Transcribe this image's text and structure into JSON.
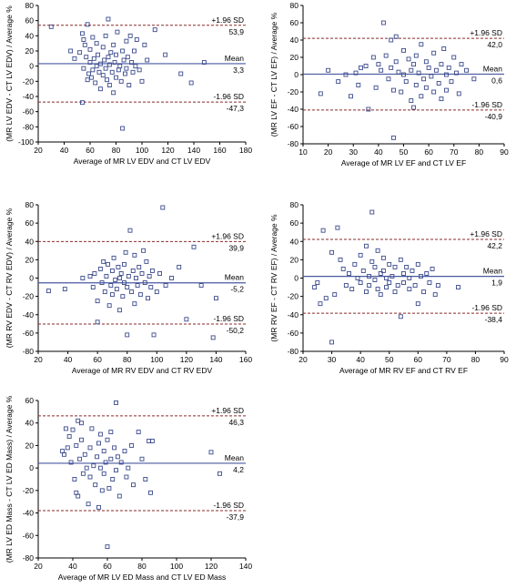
{
  "colors": {
    "mean_line": "#4a5aa0",
    "sd_line": "#8a2a2a",
    "marker": "#3b4a8c",
    "axis": "#000000"
  },
  "chart_data": [
    {
      "type": "scatter",
      "title": "",
      "xlabel": "Average of MR LV EDV and CT LV EDV",
      "ylabel": "(MR LV EDV - CT LV EDV) / Average %",
      "xlim": [
        20,
        180
      ],
      "ylim": [
        -100,
        80
      ],
      "xticks": [
        20,
        40,
        60,
        80,
        100,
        120,
        140,
        160,
        180
      ],
      "yticks": [
        -100,
        -80,
        -60,
        -40,
        -20,
        0,
        20,
        40,
        60,
        80
      ],
      "mean": 3.3,
      "upper": 53.9,
      "lower": -47.3,
      "mean_label": "Mean",
      "mean_value_label": "3,3",
      "upper_label": "+1.96 SD",
      "upper_value_label": "53,9",
      "lower_label": "-1.96 SD",
      "lower_value_label": "-47,3",
      "points": [
        [
          30,
          52
        ],
        [
          45,
          20
        ],
        [
          48,
          10
        ],
        [
          52,
          18
        ],
        [
          54,
          43
        ],
        [
          55,
          35
        ],
        [
          55,
          -3
        ],
        [
          56,
          28
        ],
        [
          57,
          12
        ],
        [
          58,
          55
        ],
        [
          58,
          -18
        ],
        [
          59,
          -10
        ],
        [
          60,
          22
        ],
        [
          60,
          5
        ],
        [
          61,
          -15
        ],
        [
          62,
          38
        ],
        [
          62,
          -5
        ],
        [
          63,
          10
        ],
        [
          64,
          -22
        ],
        [
          65,
          30
        ],
        [
          65,
          0
        ],
        [
          66,
          15
        ],
        [
          67,
          -8
        ],
        [
          68,
          -30
        ],
        [
          68,
          3
        ],
        [
          70,
          25
        ],
        [
          70,
          -12
        ],
        [
          71,
          8
        ],
        [
          72,
          40
        ],
        [
          72,
          -3
        ],
        [
          73,
          -18
        ],
        [
          74,
          12
        ],
        [
          75,
          -25
        ],
        [
          75,
          2
        ],
        [
          76,
          18
        ],
        [
          77,
          -8
        ],
        [
          78,
          28
        ],
        [
          78,
          -35
        ],
        [
          79,
          5
        ],
        [
          80,
          -15
        ],
        [
          80,
          15
        ],
        [
          81,
          45
        ],
        [
          82,
          -5
        ],
        [
          83,
          0
        ],
        [
          84,
          -20
        ],
        [
          85,
          20
        ],
        [
          85,
          -82
        ],
        [
          86,
          8
        ],
        [
          87,
          -10
        ],
        [
          88,
          33
        ],
        [
          88,
          -3
        ],
        [
          89,
          12
        ],
        [
          90,
          -25
        ],
        [
          91,
          40
        ],
        [
          92,
          5
        ],
        [
          93,
          -8
        ],
        [
          94,
          20
        ],
        [
          95,
          0
        ],
        [
          96,
          35
        ],
        [
          98,
          -5
        ],
        [
          100,
          -20
        ],
        [
          102,
          28
        ],
        [
          104,
          8
        ],
        [
          110,
          48
        ],
        [
          118,
          15
        ],
        [
          130,
          -10
        ],
        [
          138,
          -22
        ],
        [
          148,
          5
        ],
        [
          54,
          -48
        ],
        [
          74,
          62
        ]
      ]
    },
    {
      "type": "scatter",
      "title": "",
      "xlabel": "Average of MR LV EF and CT LV EF",
      "ylabel": "(MR LV EF - CT LV EF) / Average %",
      "xlim": [
        10,
        90
      ],
      "ylim": [
        -80,
        80
      ],
      "xticks": [
        10,
        20,
        30,
        40,
        50,
        60,
        70,
        80,
        90
      ],
      "yticks": [
        -80,
        -60,
        -40,
        -20,
        0,
        20,
        40,
        60,
        80
      ],
      "mean": 0.6,
      "upper": 42.0,
      "lower": -40.9,
      "mean_label": "Mean",
      "mean_value_label": "0,6",
      "upper_label": "+1.96 SD",
      "upper_value_label": "42,0",
      "lower_label": "-1.96 SD",
      "lower_value_label": "-40,9",
      "points": [
        [
          17,
          -22
        ],
        [
          20,
          5
        ],
        [
          24,
          -8
        ],
        [
          27,
          0
        ],
        [
          29,
          -25
        ],
        [
          31,
          2
        ],
        [
          32,
          -12
        ],
        [
          33,
          8
        ],
        [
          35,
          10
        ],
        [
          36,
          -40
        ],
        [
          38,
          20
        ],
        [
          39,
          -15
        ],
        [
          40,
          12
        ],
        [
          41,
          5
        ],
        [
          42,
          60
        ],
        [
          43,
          22
        ],
        [
          44,
          -5
        ],
        [
          45,
          8
        ],
        [
          45,
          40
        ],
        [
          46,
          -73
        ],
        [
          46,
          -18
        ],
        [
          47,
          15
        ],
        [
          47,
          44
        ],
        [
          48,
          3
        ],
        [
          49,
          -20
        ],
        [
          50,
          28
        ],
        [
          50,
          0
        ],
        [
          51,
          -8
        ],
        [
          52,
          18
        ],
        [
          53,
          -30
        ],
        [
          53,
          5
        ],
        [
          54,
          12
        ],
        [
          54,
          -38
        ],
        [
          55,
          -12
        ],
        [
          55,
          22
        ],
        [
          56,
          2
        ],
        [
          57,
          35
        ],
        [
          57,
          -25
        ],
        [
          58,
          -5
        ],
        [
          59,
          15
        ],
        [
          59,
          -15
        ],
        [
          60,
          8
        ],
        [
          61,
          -2
        ],
        [
          62,
          25
        ],
        [
          62,
          -20
        ],
        [
          63,
          5
        ],
        [
          64,
          -10
        ],
        [
          65,
          12
        ],
        [
          65,
          -28
        ],
        [
          66,
          30
        ],
        [
          67,
          0
        ],
        [
          67,
          -18
        ],
        [
          68,
          8
        ],
        [
          69,
          -8
        ],
        [
          70,
          20
        ],
        [
          71,
          2
        ],
        [
          72,
          -22
        ],
        [
          73,
          12
        ],
        [
          75,
          5
        ],
        [
          78,
          -5
        ]
      ]
    },
    {
      "type": "scatter",
      "title": "",
      "xlabel": "Average of MR RV EDV and CT RV EDV",
      "ylabel": "(MR RV EDV - CT RV EDV) / Average %",
      "xlim": [
        20,
        160
      ],
      "ylim": [
        -80,
        80
      ],
      "xticks": [
        20,
        40,
        60,
        80,
        100,
        120,
        140,
        160
      ],
      "yticks": [
        -80,
        -60,
        -40,
        -20,
        0,
        20,
        40,
        60,
        80
      ],
      "mean": -5.2,
      "upper": 39.9,
      "lower": -50.2,
      "mean_label": "Mean",
      "mean_value_label": "-5,2",
      "upper_label": "+1.96 SD",
      "upper_value_label": "39,9",
      "lower_label": "-1.96 SD",
      "lower_value_label": "-50,2",
      "points": [
        [
          27,
          -14
        ],
        [
          38,
          -12
        ],
        [
          50,
          0
        ],
        [
          55,
          2
        ],
        [
          57,
          -10
        ],
        [
          58,
          5
        ],
        [
          60,
          -25
        ],
        [
          60,
          -48
        ],
        [
          62,
          10
        ],
        [
          63,
          -5
        ],
        [
          64,
          18
        ],
        [
          65,
          -15
        ],
        [
          66,
          2
        ],
        [
          67,
          15
        ],
        [
          68,
          -30
        ],
        [
          69,
          -8
        ],
        [
          70,
          8
        ],
        [
          70,
          -18
        ],
        [
          71,
          22
        ],
        [
          72,
          -2
        ],
        [
          73,
          -12
        ],
        [
          74,
          12
        ],
        [
          75,
          -35
        ],
        [
          75,
          0
        ],
        [
          76,
          5
        ],
        [
          77,
          -20
        ],
        [
          78,
          -5
        ],
        [
          78,
          15
        ],
        [
          79,
          28
        ],
        [
          80,
          -10
        ],
        [
          80,
          -62
        ],
        [
          81,
          2
        ],
        [
          82,
          52
        ],
        [
          83,
          -15
        ],
        [
          84,
          8
        ],
        [
          85,
          25
        ],
        [
          85,
          -28
        ],
        [
          86,
          0
        ],
        [
          87,
          -8
        ],
        [
          88,
          12
        ],
        [
          89,
          -18
        ],
        [
          90,
          5
        ],
        [
          91,
          30
        ],
        [
          92,
          -5
        ],
        [
          93,
          18
        ],
        [
          94,
          -22
        ],
        [
          95,
          2
        ],
        [
          96,
          -10
        ],
        [
          97,
          8
        ],
        [
          98,
          -62
        ],
        [
          100,
          -15
        ],
        [
          102,
          5
        ],
        [
          104,
          77
        ],
        [
          106,
          -8
        ],
        [
          110,
          0
        ],
        [
          115,
          12
        ],
        [
          120,
          -45
        ],
        [
          125,
          34
        ],
        [
          130,
          -8
        ],
        [
          138,
          -65
        ],
        [
          140,
          -22
        ]
      ]
    },
    {
      "type": "scatter",
      "title": "",
      "xlabel": "Average of MR RV EF and CT RV EF",
      "ylabel": "(MR RV EF - CT RV EF) / Average %",
      "xlim": [
        20,
        90
      ],
      "ylim": [
        -80,
        80
      ],
      "xticks": [
        20,
        30,
        40,
        50,
        60,
        70,
        80,
        90
      ],
      "yticks": [
        -80,
        -60,
        -40,
        -20,
        0,
        20,
        40,
        60,
        80
      ],
      "mean": 1.9,
      "upper": 42.2,
      "lower": -38.4,
      "mean_label": "Mean",
      "mean_value_label": "1,9",
      "upper_label": "+1.96 SD",
      "upper_value_label": "42,2",
      "lower_label": "-1.96 SD",
      "lower_value_label": "-38,4",
      "points": [
        [
          24,
          -10
        ],
        [
          25,
          -5
        ],
        [
          26,
          -28
        ],
        [
          27,
          52
        ],
        [
          28,
          -22
        ],
        [
          30,
          28
        ],
        [
          30,
          -70
        ],
        [
          31,
          -18
        ],
        [
          32,
          55
        ],
        [
          33,
          20
        ],
        [
          34,
          10
        ],
        [
          35,
          -8
        ],
        [
          36,
          5
        ],
        [
          37,
          -12
        ],
        [
          38,
          15
        ],
        [
          39,
          0
        ],
        [
          40,
          -5
        ],
        [
          40,
          25
        ],
        [
          41,
          8
        ],
        [
          42,
          -15
        ],
        [
          42,
          35
        ],
        [
          43,
          2
        ],
        [
          43,
          -8
        ],
        [
          44,
          18
        ],
        [
          44,
          72
        ],
        [
          45,
          -2
        ],
        [
          45,
          12
        ],
        [
          46,
          30
        ],
        [
          46,
          -12
        ],
        [
          47,
          5
        ],
        [
          47,
          -18
        ],
        [
          48,
          8
        ],
        [
          48,
          22
        ],
        [
          49,
          0
        ],
        [
          49,
          -10
        ],
        [
          50,
          15
        ],
        [
          50,
          -5
        ],
        [
          51,
          2
        ],
        [
          52,
          12
        ],
        [
          52,
          -15
        ],
        [
          53,
          -8
        ],
        [
          54,
          20
        ],
        [
          54,
          -42
        ],
        [
          55,
          5
        ],
        [
          55,
          -5
        ],
        [
          56,
          12
        ],
        [
          57,
          0
        ],
        [
          57,
          -12
        ],
        [
          58,
          8
        ],
        [
          59,
          -8
        ],
        [
          60,
          15
        ],
        [
          60,
          -28
        ],
        [
          61,
          2
        ],
        [
          62,
          -15
        ],
        [
          63,
          5
        ],
        [
          64,
          -5
        ],
        [
          65,
          10
        ],
        [
          66,
          -18
        ],
        [
          67,
          -8
        ],
        [
          74,
          -10
        ]
      ]
    },
    {
      "type": "scatter",
      "title": "",
      "xlabel": "Average of MR LV ED Mass and CT LV ED Mass",
      "ylabel": "(MR LV ED Mass - CT LV ED Mass) / Average %",
      "xlim": [
        20,
        140
      ],
      "ylim": [
        -80,
        60
      ],
      "xticks": [
        20,
        40,
        60,
        80,
        100,
        120,
        140
      ],
      "yticks": [
        -80,
        -60,
        -40,
        -20,
        0,
        20,
        40,
        60
      ],
      "mean": 4.2,
      "upper": 46.3,
      "lower": -37.9,
      "mean_label": "Mean",
      "mean_value_label": "4,2",
      "upper_label": "+1.96 SD",
      "upper_value_label": "46,3",
      "lower_label": "-1.96 SD",
      "lower_value_label": "-37,9",
      "points": [
        [
          34,
          15
        ],
        [
          35,
          12
        ],
        [
          36,
          35
        ],
        [
          37,
          18
        ],
        [
          38,
          28
        ],
        [
          39,
          5
        ],
        [
          40,
          34
        ],
        [
          41,
          -10
        ],
        [
          42,
          20
        ],
        [
          42,
          -22
        ],
        [
          43,
          42
        ],
        [
          43,
          -25
        ],
        [
          44,
          8
        ],
        [
          45,
          25
        ],
        [
          45,
          40
        ],
        [
          46,
          -5
        ],
        [
          47,
          12
        ],
        [
          48,
          0
        ],
        [
          49,
          -32
        ],
        [
          50,
          18
        ],
        [
          50,
          -8
        ],
        [
          51,
          35
        ],
        [
          52,
          2
        ],
        [
          53,
          -15
        ],
        [
          54,
          10
        ],
        [
          55,
          -35
        ],
        [
          55,
          22
        ],
        [
          56,
          30
        ],
        [
          56,
          0
        ],
        [
          57,
          -20
        ],
        [
          58,
          15
        ],
        [
          58,
          -5
        ],
        [
          59,
          5
        ],
        [
          60,
          25
        ],
        [
          60,
          -70
        ],
        [
          61,
          -18
        ],
        [
          62,
          32
        ],
        [
          62,
          8
        ],
        [
          63,
          -10
        ],
        [
          64,
          18
        ],
        [
          65,
          58
        ],
        [
          65,
          -2
        ],
        [
          66,
          10
        ],
        [
          67,
          -25
        ],
        [
          68,
          5
        ],
        [
          70,
          15
        ],
        [
          71,
          -8
        ],
        [
          72,
          0
        ],
        [
          74,
          20
        ],
        [
          75,
          -15
        ],
        [
          78,
          32
        ],
        [
          80,
          8
        ],
        [
          82,
          -10
        ],
        [
          84,
          24
        ],
        [
          85,
          -22
        ],
        [
          86,
          24
        ],
        [
          120,
          14
        ],
        [
          125,
          -5
        ]
      ]
    }
  ]
}
